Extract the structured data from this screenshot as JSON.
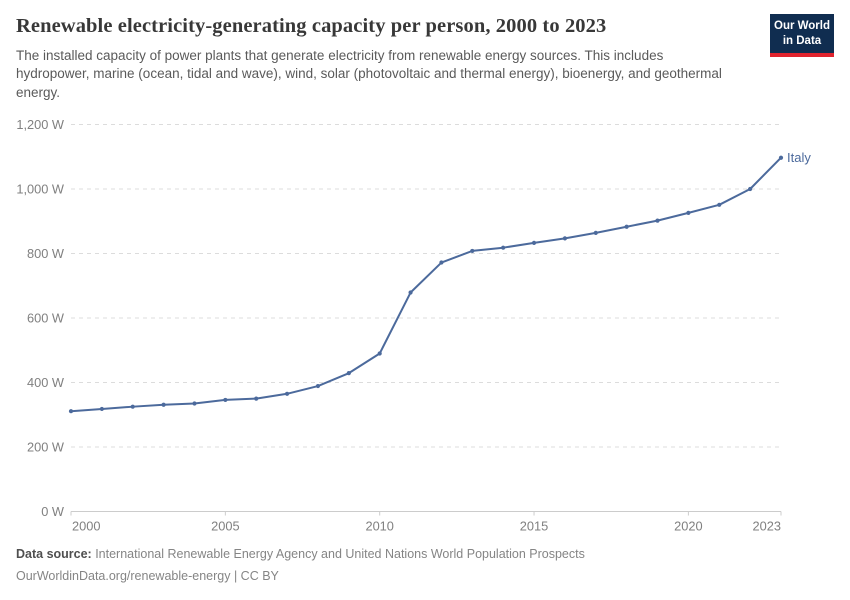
{
  "header": {
    "title": "Renewable electricity-generating capacity per person, 2000 to 2023",
    "subtitle": "The installed capacity of power plants that generate electricity from renewable energy sources. This includes hydropower, marine (ocean, tidal and wave), wind, solar (photovoltaic and thermal energy), bioenergy, and geothermal energy.",
    "logo": {
      "line1": "Our World",
      "line2": "in Data"
    }
  },
  "chart_data": {
    "type": "line",
    "title": "Renewable electricity-generating capacity per person, 2000 to 2023",
    "xlabel": "",
    "ylabel": "",
    "xlim": [
      2000,
      2023
    ],
    "ylim": [
      0,
      1200
    ],
    "grid": "horizontal-dashed",
    "legend_position": "end-of-line",
    "x_ticks": [
      2000,
      2005,
      2010,
      2015,
      2020,
      2023
    ],
    "y_ticks": [
      {
        "value": 0,
        "label": "0 W"
      },
      {
        "value": 200,
        "label": "200 W"
      },
      {
        "value": 400,
        "label": "400 W"
      },
      {
        "value": 600,
        "label": "600 W"
      },
      {
        "value": 800,
        "label": "800 W"
      },
      {
        "value": 1000,
        "label": "1,000 W"
      },
      {
        "value": 1200,
        "label": "1,200 W"
      }
    ],
    "unit": "W",
    "series": [
      {
        "name": "Italy",
        "color": "#4c6a9c",
        "x": [
          2000,
          2001,
          2002,
          2003,
          2004,
          2005,
          2006,
          2007,
          2008,
          2009,
          2010,
          2011,
          2012,
          2013,
          2014,
          2015,
          2016,
          2017,
          2018,
          2019,
          2020,
          2021,
          2022,
          2023
        ],
        "values": [
          311,
          318,
          325,
          331,
          335,
          346,
          350,
          365,
          389,
          429,
          490,
          679,
          772,
          808,
          818,
          833,
          847,
          864,
          883,
          902,
          926,
          951,
          1000,
          1097
        ]
      }
    ]
  },
  "footer": {
    "source_label": "Data source:",
    "source_text": " International Renewable Energy Agency and United Nations World Population Prospects",
    "url_text": "OurWorldinData.org/renewable-energy",
    "separator": " | ",
    "license_text": "CC BY"
  },
  "colors": {
    "series_line": "#4c6a9c",
    "title_text": "#383838",
    "subtitle_text": "#5a5a5a",
    "tick_text": "#808080",
    "gridline": "#dcdcdc",
    "axis_line": "#cccccc",
    "logo_bg": "#102d50",
    "logo_accent": "#e0232e"
  }
}
